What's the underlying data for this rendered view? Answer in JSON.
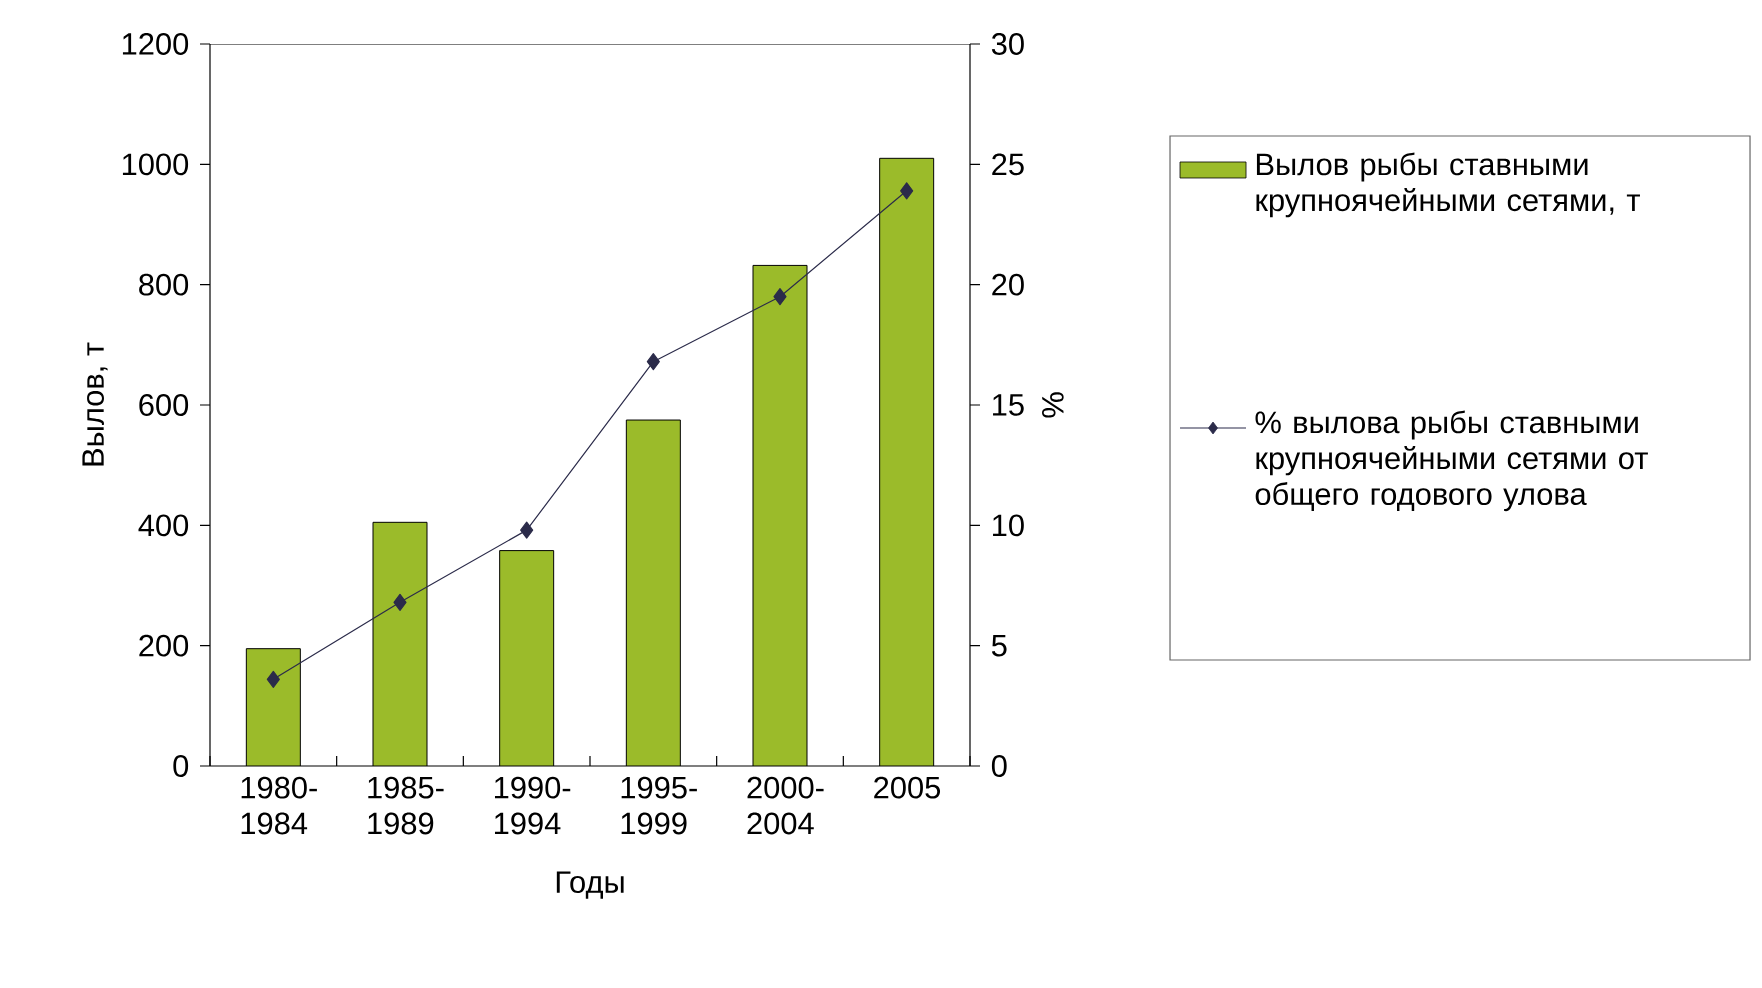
{
  "chart_data": {
    "type": "bar",
    "xlabel": "Годы",
    "ylabel": "Вылов, т",
    "y2label": "%",
    "categories": [
      "1980-1984",
      "1985-1989",
      "1990-1994",
      "1995-1999",
      "2000-2004",
      "2005"
    ],
    "series": [
      {
        "name": "Вылов рыбы ставными крупноячейными сетями, т",
        "color": "#9bbb2a",
        "values": [
          195,
          405,
          358,
          575,
          832,
          1010
        ]
      },
      {
        "name": "% вылова рыбы ставными крупноячейными сетями от общего годового улова",
        "type": "line",
        "axis": "y2",
        "color": "#2b2b4a",
        "marker": "diamond",
        "values": [
          3.6,
          6.8,
          9.8,
          16.8,
          19.5,
          23.9
        ]
      }
    ],
    "ylim": [
      0,
      1200
    ],
    "yticks": [
      0,
      200,
      400,
      600,
      800,
      1000,
      1200
    ],
    "y2lim": [
      0,
      30
    ],
    "y2ticks": [
      0,
      5,
      10,
      15,
      20,
      25,
      30
    ],
    "legend": "right"
  }
}
